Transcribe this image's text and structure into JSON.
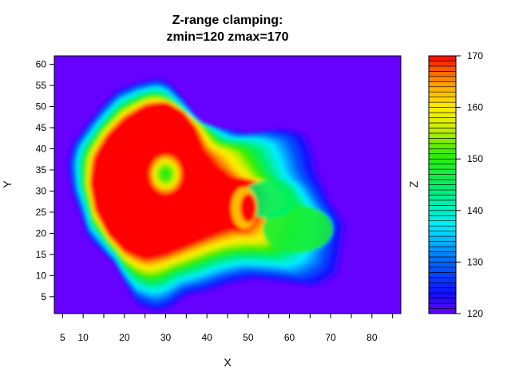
{
  "chart_data": {
    "type": "heatmap",
    "title_lines": [
      "Z-range clamping:",
      "zmin=120 zmax=170"
    ],
    "xlabel": "X",
    "ylabel": "Y",
    "zlabel": "Z",
    "xlim": [
      3,
      87
    ],
    "ylim": [
      1,
      62
    ],
    "zlim": [
      120,
      170
    ],
    "x_ticks": [
      5,
      10,
      20,
      30,
      40,
      50,
      60,
      70,
      80
    ],
    "y_ticks": [
      5,
      10,
      15,
      20,
      25,
      30,
      35,
      40,
      45,
      50,
      55,
      60
    ],
    "z_ticks": [
      120,
      130,
      140,
      150,
      160,
      170
    ],
    "background_color": "#6600ff",
    "colormap": "rainbow (blue → cyan → green → yellow → red)",
    "footprint_outline": [
      [
        28,
        1
      ],
      [
        23,
        3
      ],
      [
        20,
        8
      ],
      [
        18,
        12
      ],
      [
        15,
        15
      ],
      [
        11,
        19
      ],
      [
        9,
        25
      ],
      [
        7,
        30
      ],
      [
        6,
        36
      ],
      [
        7,
        41
      ],
      [
        10,
        45
      ],
      [
        14,
        50
      ],
      [
        18,
        54
      ],
      [
        23,
        56
      ],
      [
        29,
        57
      ],
      [
        32,
        55
      ],
      [
        36,
        50
      ],
      [
        39,
        46
      ],
      [
        44,
        45
      ],
      [
        50,
        44
      ],
      [
        58,
        45
      ],
      [
        64,
        44
      ],
      [
        66,
        40
      ],
      [
        67,
        35
      ],
      [
        70,
        28
      ],
      [
        74,
        22
      ],
      [
        73,
        15
      ],
      [
        72,
        10
      ],
      [
        67,
        7
      ],
      [
        60,
        8
      ],
      [
        52,
        9
      ],
      [
        46,
        8
      ],
      [
        40,
        6
      ],
      [
        35,
        5
      ],
      [
        31,
        2
      ]
    ],
    "features": [
      {
        "kind": "plateau",
        "at_or_above": 170,
        "outline": [
          [
            25,
            14
          ],
          [
            20,
            16
          ],
          [
            16,
            20
          ],
          [
            13,
            26
          ],
          [
            12,
            32
          ],
          [
            13,
            38
          ],
          [
            16,
            43
          ],
          [
            20,
            47
          ],
          [
            25,
            50
          ],
          [
            30,
            51
          ],
          [
            34,
            49
          ],
          [
            37,
            45
          ],
          [
            39,
            40
          ],
          [
            42,
            36
          ],
          [
            46,
            33
          ],
          [
            50,
            33
          ],
          [
            53,
            30
          ],
          [
            52,
            24
          ],
          [
            49,
            21
          ],
          [
            45,
            21
          ],
          [
            40,
            19
          ],
          [
            35,
            17
          ],
          [
            30,
            15
          ]
        ]
      },
      {
        "kind": "dip",
        "center": [
          30,
          34
        ],
        "min_value": 150
      },
      {
        "kind": "shoulder",
        "center": [
          62,
          21
        ],
        "value": 148
      },
      {
        "kind": "shoulder",
        "center": [
          55,
          28
        ],
        "value": 145
      }
    ]
  }
}
